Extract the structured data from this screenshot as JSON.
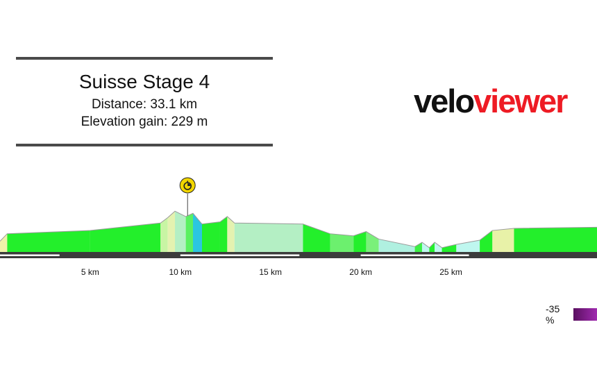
{
  "title_block": {
    "title": "Suisse Stage 4",
    "distance_line": "Distance: 33.1 km",
    "elevation_line": "Elevation gain: 229 m"
  },
  "brand": {
    "part1": "velo",
    "part2": "viewer",
    "colors": {
      "part1": "#111111",
      "part2": "#ee1b24"
    }
  },
  "legend": {
    "label": "-35 %",
    "colors": [
      "#5a1060",
      "#a02ab0"
    ]
  },
  "markers": [
    {
      "type": "timing-point",
      "icon": "stopwatch-icon",
      "km": 10.4,
      "color": "#f2d600"
    }
  ],
  "chart_data": {
    "type": "area",
    "x_unit": "km",
    "xlim": [
      0,
      33.1
    ],
    "ylim": [
      0,
      42
    ],
    "grid": false,
    "legend": "bottom-right",
    "x_tick_labels": [
      {
        "km": 5,
        "label": "5 km"
      },
      {
        "km": 10,
        "label": "10 km"
      },
      {
        "km": 15,
        "label": "15 km"
      },
      {
        "km": 20,
        "label": "20 km"
      },
      {
        "km": 25,
        "label": "25 km"
      }
    ],
    "profile": [
      {
        "x": 0,
        "y": 10
      },
      {
        "x": 0.4,
        "y": 17
      },
      {
        "x": 5,
        "y": 20
      },
      {
        "x": 8.9,
        "y": 27
      },
      {
        "x": 9.3,
        "y": 32
      },
      {
        "x": 9.7,
        "y": 38
      },
      {
        "x": 10.3,
        "y": 33
      },
      {
        "x": 10.7,
        "y": 36
      },
      {
        "x": 11.2,
        "y": 26
      },
      {
        "x": 12.2,
        "y": 28
      },
      {
        "x": 12.6,
        "y": 33
      },
      {
        "x": 13.0,
        "y": 27
      },
      {
        "x": 16.8,
        "y": 26
      },
      {
        "x": 18.3,
        "y": 17
      },
      {
        "x": 19.6,
        "y": 15
      },
      {
        "x": 20.3,
        "y": 19
      },
      {
        "x": 21.0,
        "y": 12
      },
      {
        "x": 23.0,
        "y": 5
      },
      {
        "x": 23.4,
        "y": 9
      },
      {
        "x": 23.8,
        "y": 4
      },
      {
        "x": 24.1,
        "y": 9
      },
      {
        "x": 24.5,
        "y": 4
      },
      {
        "x": 25.3,
        "y": 7
      },
      {
        "x": 26.6,
        "y": 11
      },
      {
        "x": 27.3,
        "y": 20
      },
      {
        "x": 28.5,
        "y": 22
      },
      {
        "x": 33.1,
        "y": 23
      }
    ],
    "segment_colors": [
      "#eef2a8",
      "#23ef2b",
      "#23ef2b",
      "#c8f5a4",
      "#e4f2b0",
      "#b4efc4",
      "#5af060",
      "#2bc6e0",
      "#23ef2b",
      "#23ef2b",
      "#e4f2b0",
      "#b4efc4",
      "#23ef2b",
      "#6cf06e",
      "#23ef2b",
      "#7af07a",
      "#b0f0e0",
      "#3cef44",
      "#bff7ef",
      "#23ef2b",
      "#bff7ef",
      "#23ef2b",
      "#bff7ef",
      "#23ef2b",
      "#e8f2a8",
      "#23ef2b"
    ],
    "route_bars": [
      {
        "start": 0,
        "end": 3.3
      },
      {
        "start": 10.0,
        "end": 16.6
      },
      {
        "start": 20.0,
        "end": 26.0
      }
    ]
  }
}
